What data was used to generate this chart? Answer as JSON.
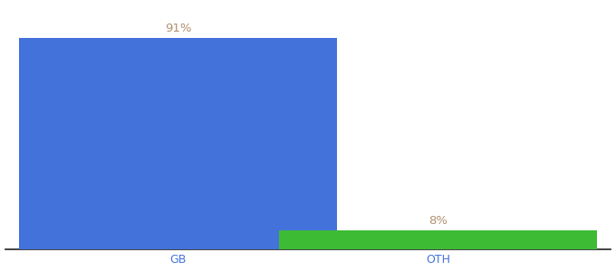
{
  "categories": [
    "GB",
    "OTH"
  ],
  "values": [
    91,
    8
  ],
  "bar_colors": [
    "#4472db",
    "#3dbb35"
  ],
  "label_color": "#b09070",
  "label_fontsize": 9.5,
  "tick_color": "#4472db",
  "tick_fontsize": 9,
  "background_color": "#ffffff",
  "bar_width": 0.55,
  "x_positions": [
    0.3,
    0.75
  ],
  "xlim": [
    0.0,
    1.05
  ],
  "ylim": [
    0,
    105
  ]
}
